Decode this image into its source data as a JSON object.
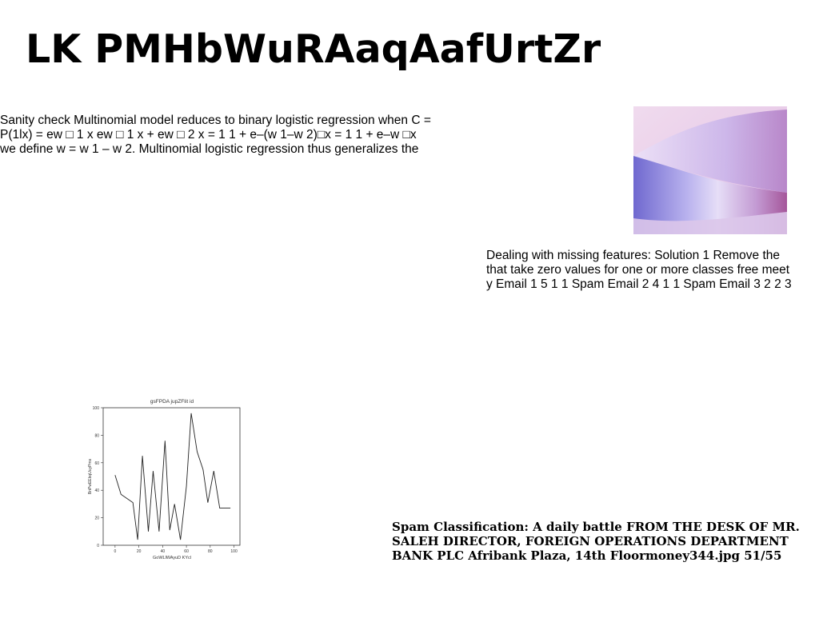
{
  "slide": {
    "title": "LK PMHbWuRAaqAafUrtZr",
    "paragraph_a": {
      "lines": [
        "Sanity check Multinomial model reduces to binary logistic regression when C =",
        "P(1lx) = ew □ 1 x ew □ 1 x + ew □ 2 x = 1 1 + e–(w 1–w 2)□x = 1 1 + e–w □x",
        "we define w = w 1 – w 2. Multinomial logistic regression thus generalizes the"
      ]
    },
    "paragraph_b": {
      "lines": [
        "Dealing with missing features: Solution 1 Remove the",
        "that take zero values for one or more classes free meet",
        "y Email 1 5 1 1 Spam Email 2 4 1 1 Spam Email 3 2 2 3"
      ]
    },
    "footer": {
      "lines": [
        "Spam Classification: A daily battle FROM THE DESK OF MR.",
        "SALEH DIRECTOR, FOREIGN OPERATIONS DEPARTMENT",
        "BANK PLC Afribank Plaza, 14th Floormoney344.jpg 51/55"
      ]
    },
    "photo": {
      "colors": {
        "background": "#e4c6e8",
        "band_dark": "#7a6cd0",
        "band_light": "#d6c6f2",
        "band_right": "#a7559a"
      }
    }
  },
  "chart_data": {
    "type": "line",
    "title": "gsFPDA jupZFIit id",
    "xlabel": "GoWLlWAyuD KYcl",
    "ylabel": "BnPwEEbqUuyPms",
    "x": [
      0,
      5,
      15,
      19,
      23,
      28,
      32,
      37,
      42,
      46,
      50,
      55,
      60,
      64,
      69,
      74,
      78,
      83,
      88,
      92,
      97
    ],
    "values": [
      51,
      37,
      31,
      4,
      65,
      10,
      54,
      10,
      76,
      11,
      30,
      4,
      43,
      96,
      68,
      55,
      31,
      54,
      27,
      27,
      27
    ],
    "xlim": [
      -10,
      105
    ],
    "ylim": [
      0,
      100
    ],
    "xticks": [
      0,
      20,
      40,
      60,
      80,
      100
    ],
    "yticks": [
      0,
      20,
      40,
      60,
      80,
      100
    ],
    "grid": false,
    "line_color": "#222222"
  }
}
